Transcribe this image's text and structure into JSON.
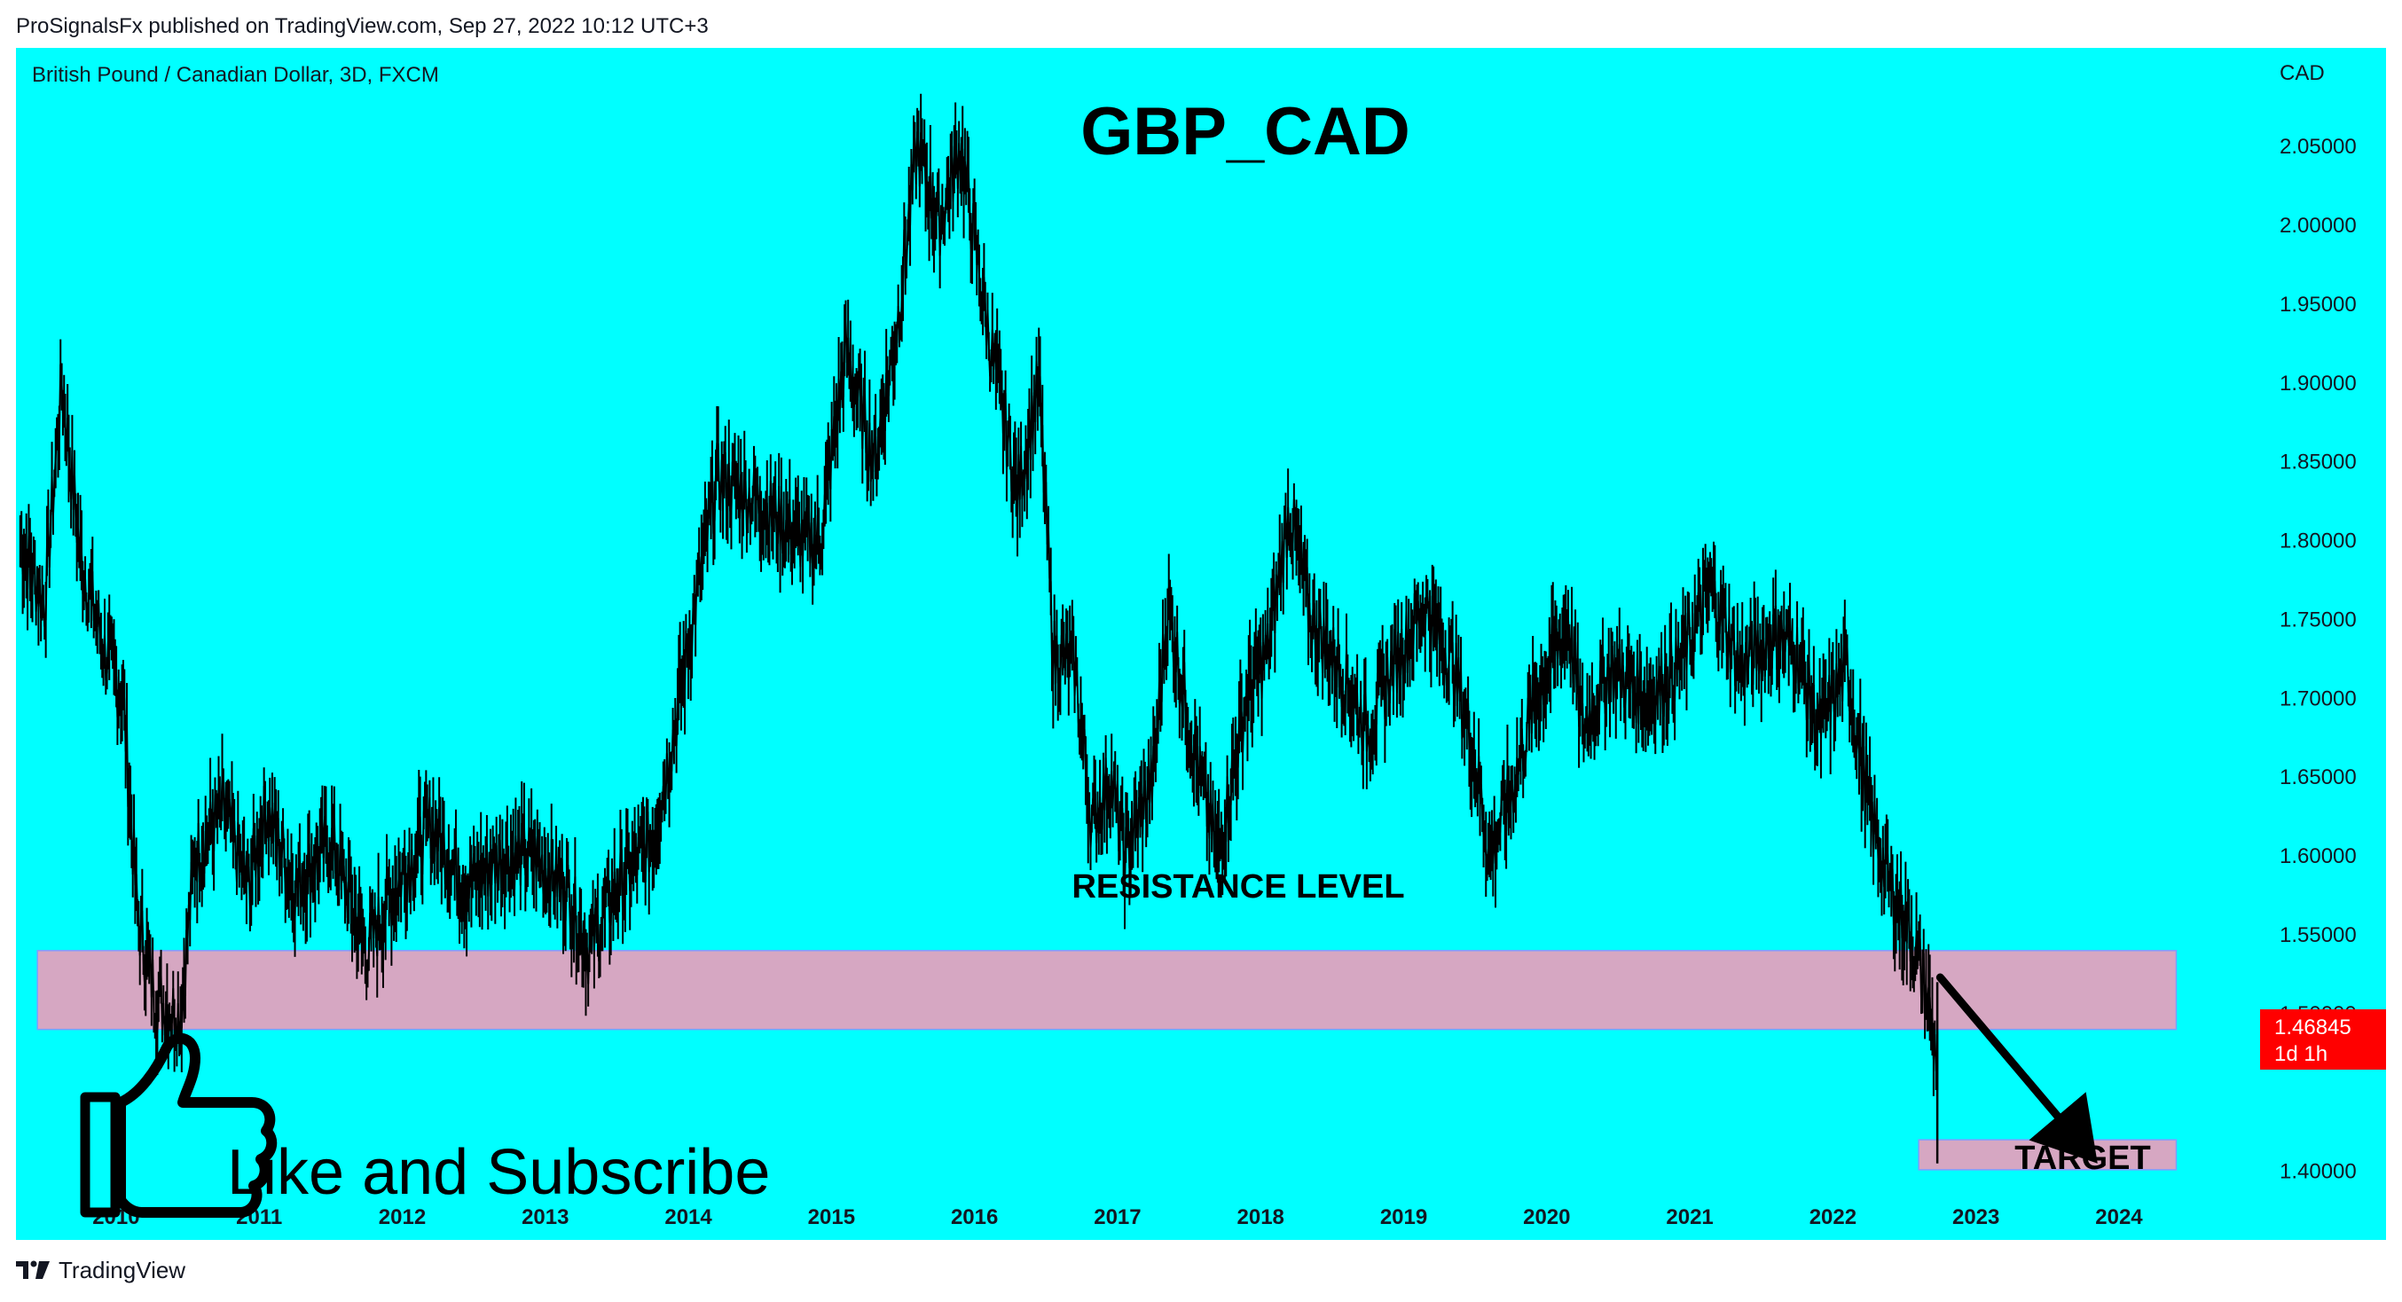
{
  "header": {
    "publisher_line": "ProSignalsFx published on TradingView.com, Sep 27, 2022 10:12 UTC+3"
  },
  "footer": {
    "brand": "TradingView",
    "logo_icon": "tradingview-logo-icon"
  },
  "chart_header": {
    "symbol_description": "British Pound / Canadian Dollar, 3D, FXCM",
    "currency": "CAD"
  },
  "annotations": {
    "headline": "GBP_CAD",
    "resistance_label": "RESISTANCE LEVEL",
    "target_label": "TARGET",
    "cta_text": "Like and Subscribe",
    "cta_icon": "thumbs-up-icon"
  },
  "price_badge": {
    "price": "1.46845",
    "countdown": "1d 1h",
    "color": "#ff0000"
  },
  "colors": {
    "background": "#00ffff",
    "zone_fill": "#d6a7c2",
    "zone_stroke": "#7f9cff",
    "line": "#000000"
  },
  "chart_data": {
    "type": "line",
    "title": "GBP_CAD",
    "xlabel": "",
    "ylabel": "",
    "x_ticks": [
      "2010",
      "2011",
      "2012",
      "2013",
      "2014",
      "2015",
      "2016",
      "2017",
      "2018",
      "2019",
      "2020",
      "2021",
      "2022",
      "2023",
      "2024"
    ],
    "y_ticks": [
      "2.05000",
      "2.00000",
      "1.95000",
      "1.90000",
      "1.85000",
      "1.80000",
      "1.75000",
      "1.70000",
      "1.65000",
      "1.60000",
      "1.55000",
      "1.50000",
      "1.40000"
    ],
    "xlim": [
      2009.3,
      2024.8
    ],
    "ylim": [
      1.37,
      2.09
    ],
    "series": [
      {
        "points": [
          [
            2009.33,
            1.8
          ],
          [
            2009.5,
            1.76
          ],
          [
            2009.62,
            1.9
          ],
          [
            2009.75,
            1.79
          ],
          [
            2009.92,
            1.73
          ],
          [
            2010.05,
            1.7
          ],
          [
            2010.15,
            1.56
          ],
          [
            2010.28,
            1.51
          ],
          [
            2010.45,
            1.5
          ],
          [
            2010.55,
            1.6
          ],
          [
            2010.75,
            1.63
          ],
          [
            2010.92,
            1.58
          ],
          [
            2011.05,
            1.63
          ],
          [
            2011.25,
            1.58
          ],
          [
            2011.5,
            1.61
          ],
          [
            2011.75,
            1.54
          ],
          [
            2011.95,
            1.58
          ],
          [
            2012.2,
            1.62
          ],
          [
            2012.45,
            1.58
          ],
          [
            2012.7,
            1.6
          ],
          [
            2012.92,
            1.6
          ],
          [
            2013.15,
            1.58
          ],
          [
            2013.3,
            1.54
          ],
          [
            2013.5,
            1.58
          ],
          [
            2013.75,
            1.61
          ],
          [
            2013.9,
            1.68
          ],
          [
            2014.05,
            1.76
          ],
          [
            2014.2,
            1.84
          ],
          [
            2014.4,
            1.83
          ],
          [
            2014.55,
            1.82
          ],
          [
            2014.8,
            1.8
          ],
          [
            2014.92,
            1.8
          ],
          [
            2015.1,
            1.92
          ],
          [
            2015.3,
            1.85
          ],
          [
            2015.45,
            1.93
          ],
          [
            2015.6,
            2.05
          ],
          [
            2015.75,
            2.0
          ],
          [
            2015.9,
            2.05
          ],
          [
            2016.1,
            1.93
          ],
          [
            2016.3,
            1.83
          ],
          [
            2016.45,
            1.9
          ],
          [
            2016.55,
            1.73
          ],
          [
            2016.7,
            1.72
          ],
          [
            2016.82,
            1.62
          ],
          [
            2016.95,
            1.65
          ],
          [
            2017.05,
            1.6
          ],
          [
            2017.25,
            1.65
          ],
          [
            2017.35,
            1.76
          ],
          [
            2017.55,
            1.66
          ],
          [
            2017.7,
            1.6
          ],
          [
            2017.9,
            1.7
          ],
          [
            2018.05,
            1.73
          ],
          [
            2018.2,
            1.82
          ],
          [
            2018.35,
            1.75
          ],
          [
            2018.55,
            1.72
          ],
          [
            2018.75,
            1.68
          ],
          [
            2018.92,
            1.72
          ],
          [
            2019.15,
            1.76
          ],
          [
            2019.35,
            1.72
          ],
          [
            2019.5,
            1.66
          ],
          [
            2019.6,
            1.6
          ],
          [
            2019.75,
            1.64
          ],
          [
            2019.92,
            1.7
          ],
          [
            2020.15,
            1.75
          ],
          [
            2020.25,
            1.68
          ],
          [
            2020.45,
            1.72
          ],
          [
            2020.7,
            1.7
          ],
          [
            2020.92,
            1.72
          ],
          [
            2021.15,
            1.77
          ],
          [
            2021.35,
            1.72
          ],
          [
            2021.6,
            1.74
          ],
          [
            2021.75,
            1.73
          ],
          [
            2021.9,
            1.68
          ],
          [
            2022.1,
            1.72
          ],
          [
            2022.25,
            1.63
          ],
          [
            2022.4,
            1.58
          ],
          [
            2022.55,
            1.55
          ],
          [
            2022.66,
            1.51
          ],
          [
            2022.73,
            1.47
          ]
        ]
      }
    ],
    "zones": [
      {
        "label": "RESISTANCE LEVEL",
        "x_range": [
          2009.45,
          2024.4
        ],
        "y_range": [
          1.49,
          1.54
        ]
      },
      {
        "label": "TARGET",
        "x_range": [
          2022.6,
          2024.4
        ],
        "y_range": [
          1.401,
          1.42
        ]
      }
    ],
    "arrow": {
      "from": [
        2022.75,
        1.523
      ],
      "to": [
        2023.85,
        1.405
      ]
    },
    "last_price": 1.46845,
    "grid": false,
    "legend": "none"
  }
}
